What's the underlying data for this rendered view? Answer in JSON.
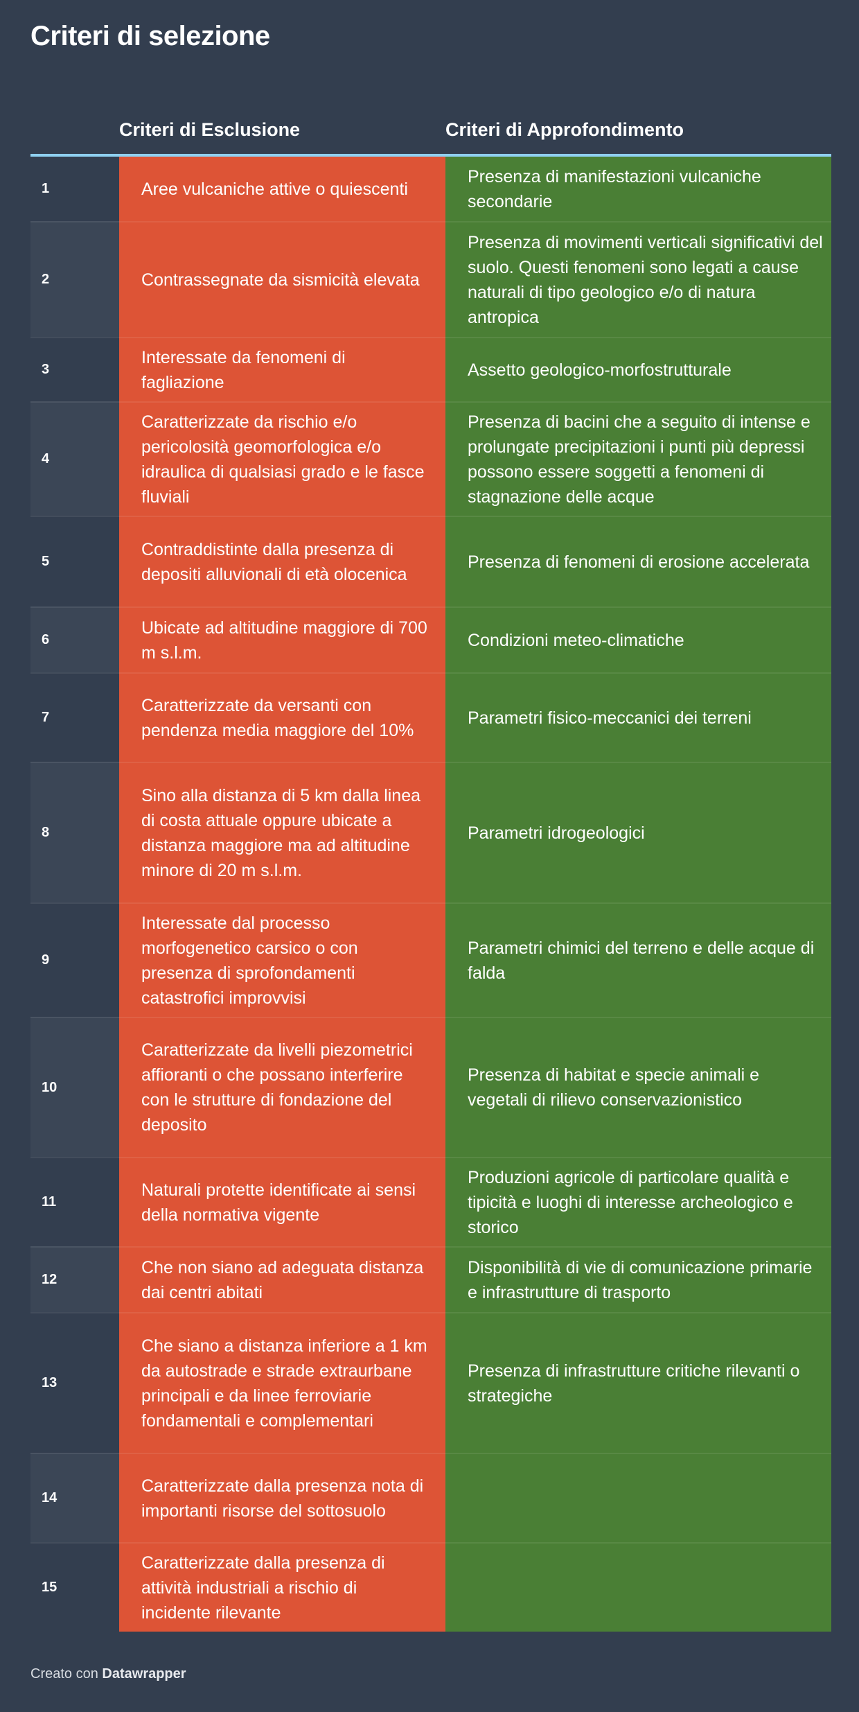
{
  "title": "Criteri di selezione",
  "columns": {
    "number": "",
    "exclusion": "Criteri di Esclusione",
    "investigation": "Criteri di Approfondimento"
  },
  "colors": {
    "background": "#333e4f",
    "exclusion": "#dd5436",
    "investigation": "#4a7f35",
    "header_rule": "#8fd0f0"
  },
  "rows": [
    {
      "n": "1",
      "excl": "Aree vulcaniche attive o quiescenti",
      "appr": "Presenza di manifestazioni vulcaniche secondarie"
    },
    {
      "n": "2",
      "excl": "Contrassegnate da sismicità elevata",
      "appr": "Presenza di movimenti verticali significativi del suolo. Questi fenomeni sono legati a cause naturali di tipo geologico e/o di natura antropica"
    },
    {
      "n": "3",
      "excl": "Interessate da fenomeni di fagliazione",
      "appr": "Assetto geologico-morfostrutturale"
    },
    {
      "n": "4",
      "excl": "Caratterizzate da rischio e/o pericolosità geomorfologica e/o idraulica di qualsiasi grado e le fasce fluviali",
      "appr": "Presenza di bacini che a seguito di intense e prolungate precipitazioni i punti più depressi possono essere soggetti a fenomeni di stagnazione delle acque"
    },
    {
      "n": "5",
      "excl": "Contraddistinte dalla presenza di depositi alluvionali di età olocenica",
      "appr": "Presenza di fenomeni di erosione accelerata"
    },
    {
      "n": "6",
      "excl": "Ubicate ad altitudine maggiore di 700 m s.l.m.",
      "appr": "Condizioni meteo-climatiche"
    },
    {
      "n": "7",
      "excl": "Caratterizzate da versanti con pendenza media maggiore del 10%",
      "appr": "Parametri fisico-meccanici dei terreni"
    },
    {
      "n": "8",
      "excl": "Sino alla distanza di 5 km dalla linea di costa attuale oppure ubicate a distanza maggiore ma ad altitudine minore di 20 m s.l.m.",
      "appr": "Parametri idrogeologici"
    },
    {
      "n": "9",
      "excl": "Interessate dal processo morfogenetico carsico o con presenza di sprofondamenti catastrofici improvvisi",
      "appr": "Parametri chimici del terreno e delle acque di falda"
    },
    {
      "n": "10",
      "excl": "Caratterizzate da livelli piezometrici affioranti o che possano interferire con le strutture di fondazione del deposito",
      "appr": "Presenza di habitat e specie animali e vegetali di rilievo conservazionistico"
    },
    {
      "n": "11",
      "excl": "Naturali protette identificate ai sensi della normativa vigente",
      "appr": "Produzioni agricole di particolare qualità e tipicità e luoghi di interesse archeologico e storico"
    },
    {
      "n": "12",
      "excl": "Che non siano ad adeguata distanza dai centri abitati",
      "appr": "Disponibilità di vie di comunicazione primarie e infrastrutture di trasporto"
    },
    {
      "n": "13",
      "excl": "Che siano a distanza inferiore a 1 km da autostrade e strade extraurbane principali e da linee ferroviarie fondamentali e complementari",
      "appr": "Presenza di infrastrutture critiche rilevanti o strategiche"
    },
    {
      "n": "14",
      "excl": "Caratterizzate dalla presenza nota di importanti risorse del sottosuolo",
      "appr": ""
    },
    {
      "n": "15",
      "excl": "Caratterizzate dalla presenza di attività industriali a rischio di incidente rilevante",
      "appr": ""
    }
  ],
  "footer": {
    "prefix": "Creato con",
    "brand": "Datawrapper"
  }
}
